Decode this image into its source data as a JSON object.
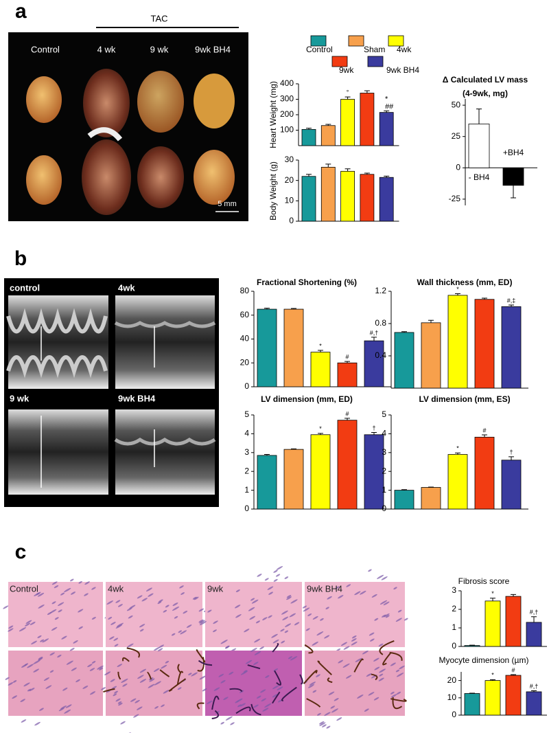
{
  "figure": {
    "panel_labels": [
      "a",
      "b",
      "c"
    ],
    "tac": "TAC",
    "heart_labels": [
      "Control",
      "4 wk",
      "9 wk",
      "9wk BH4"
    ],
    "scale_bar": "5 mm",
    "echo_labels": [
      "control",
      "4wk",
      "9 wk",
      "9wk BH4"
    ],
    "histology_labels": [
      "Control",
      "4wk",
      "9wk",
      "9wk BH4"
    ]
  },
  "chart_data": [
    {
      "type": "bar",
      "ylabel": "Heart Weight (mg)",
      "legend": true,
      "categories": [
        "Control",
        "Sham",
        "4wk",
        "9wk",
        "9wk BH4"
      ],
      "colors": [
        "#17999a",
        "#f7a04c",
        "#ffff00",
        "#f23c12",
        "#3a3b9e"
      ],
      "values": [
        105,
        130,
        300,
        340,
        215
      ],
      "errors": [
        8,
        8,
        15,
        15,
        10
      ],
      "annotations": [
        null,
        null,
        "°",
        null,
        [
          "*",
          "##"
        ]
      ],
      "ylim": [
        0,
        400
      ],
      "yticks": [
        100,
        200,
        300,
        400
      ]
    },
    {
      "type": "bar",
      "ylabel": "Body Weight (g)",
      "categories": [
        "Control",
        "Sham",
        "4wk",
        "9wk",
        "9wk BH4"
      ],
      "colors": [
        "#17999a",
        "#f7a04c",
        "#ffff00",
        "#f23c12",
        "#3a3b9e"
      ],
      "values": [
        22,
        26.5,
        24.5,
        23,
        21.5
      ],
      "errors": [
        1,
        1.5,
        1.2,
        0.6,
        0.6
      ],
      "ylim": [
        0,
        30
      ],
      "yticks": [
        0,
        10,
        20,
        30
      ]
    },
    {
      "type": "bar",
      "title": "Δ Calculated LV mass",
      "subtitle": "(4-9wk, mg)",
      "categories": [
        "- BH4",
        "+BH4"
      ],
      "colors": [
        "#ffffff",
        "#000000"
      ],
      "values": [
        35,
        -14
      ],
      "errors": [
        12,
        10
      ],
      "ylim": [
        -30,
        55
      ],
      "yticks": [
        -25,
        0,
        25,
        50
      ]
    },
    {
      "type": "bar",
      "title": "Fractional Shortening (%)",
      "categories": [
        "Control",
        "Sham",
        "4wk",
        "9wk",
        "9wk BH4"
      ],
      "colors": [
        "#17999a",
        "#f7a04c",
        "#ffff00",
        "#f23c12",
        "#3a3b9e"
      ],
      "values": [
        65,
        65,
        29,
        20,
        38.5
      ],
      "errors": [
        0.8,
        0.6,
        1.5,
        1.2,
        3
      ],
      "annotations": [
        null,
        null,
        "*",
        "#",
        "#,†"
      ],
      "ylim": [
        0,
        80
      ],
      "yticks": [
        0,
        20,
        40,
        60,
        80
      ]
    },
    {
      "type": "bar",
      "title": "Wall thickness  (mm, ED)",
      "categories": [
        "Control",
        "Sham",
        "4wk",
        "9wk",
        "9wk BH4"
      ],
      "colors": [
        "#17999a",
        "#f7a04c",
        "#ffff00",
        "#f23c12",
        "#3a3b9e"
      ],
      "values": [
        0.69,
        0.81,
        1.15,
        1.1,
        1.01
      ],
      "errors": [
        0.01,
        0.03,
        0.02,
        0.015,
        0.02
      ],
      "annotations": [
        null,
        null,
        "*",
        null,
        "#,‡"
      ],
      "ylim": [
        0,
        1.2
      ],
      "yticks": [
        0.4,
        0.8,
        1.2
      ]
    },
    {
      "type": "bar",
      "title": "LV dimension (mm, ED)",
      "categories": [
        "Control",
        "Sham",
        "4wk",
        "9wk",
        "9wk BH4"
      ],
      "colors": [
        "#17999a",
        "#f7a04c",
        "#ffff00",
        "#f23c12",
        "#3a3b9e"
      ],
      "values": [
        2.85,
        3.17,
        3.95,
        4.72,
        3.95
      ],
      "errors": [
        0.05,
        0.03,
        0.07,
        0.1,
        0.12
      ],
      "annotations": [
        null,
        null,
        "*",
        "#",
        "†"
      ],
      "ylim": [
        0,
        5
      ],
      "yticks": [
        0,
        1,
        2,
        3,
        4,
        5
      ]
    },
    {
      "type": "bar",
      "title": "LV dimension (mm, ES)",
      "categories": [
        "Control",
        "Sham",
        "4wk",
        "9wk",
        "9wk BH4"
      ],
      "colors": [
        "#17999a",
        "#f7a04c",
        "#ffff00",
        "#f23c12",
        "#3a3b9e"
      ],
      "values": [
        1,
        1.15,
        2.9,
        3.82,
        2.6
      ],
      "errors": [
        0.03,
        0.02,
        0.08,
        0.12,
        0.18
      ],
      "annotations": [
        null,
        null,
        "*",
        "#",
        "†"
      ],
      "ylim": [
        0,
        5
      ],
      "yticks": [
        0,
        1,
        2,
        3,
        4,
        5
      ]
    },
    {
      "type": "bar",
      "title": "Fibrosis score",
      "categories": [
        "Control",
        "4wk",
        "9wk",
        "9wk BH4"
      ],
      "colors": [
        "#17999a",
        "#ffff00",
        "#f23c12",
        "#3a3b9e"
      ],
      "values": [
        0.05,
        2.45,
        2.7,
        1.3
      ],
      "errors": [
        0.02,
        0.15,
        0.1,
        0.3
      ],
      "annotations": [
        null,
        "*",
        null,
        "#,†"
      ],
      "ylim": [
        0,
        3
      ],
      "yticks": [
        0,
        1,
        2,
        3
      ]
    },
    {
      "type": "bar",
      "title": "Myocyte dimension (µm)",
      "categories": [
        "Control",
        "4wk",
        "9wk",
        "9wk BH4"
      ],
      "colors": [
        "#17999a",
        "#ffff00",
        "#f23c12",
        "#3a3b9e"
      ],
      "values": [
        12.5,
        20,
        23,
        13.5
      ],
      "errors": [
        0.2,
        0.5,
        0.4,
        0.6
      ],
      "annotations": [
        null,
        "*",
        "#",
        "#,†"
      ],
      "ylim": [
        0,
        25
      ],
      "yticks": [
        0,
        10,
        20
      ]
    }
  ]
}
